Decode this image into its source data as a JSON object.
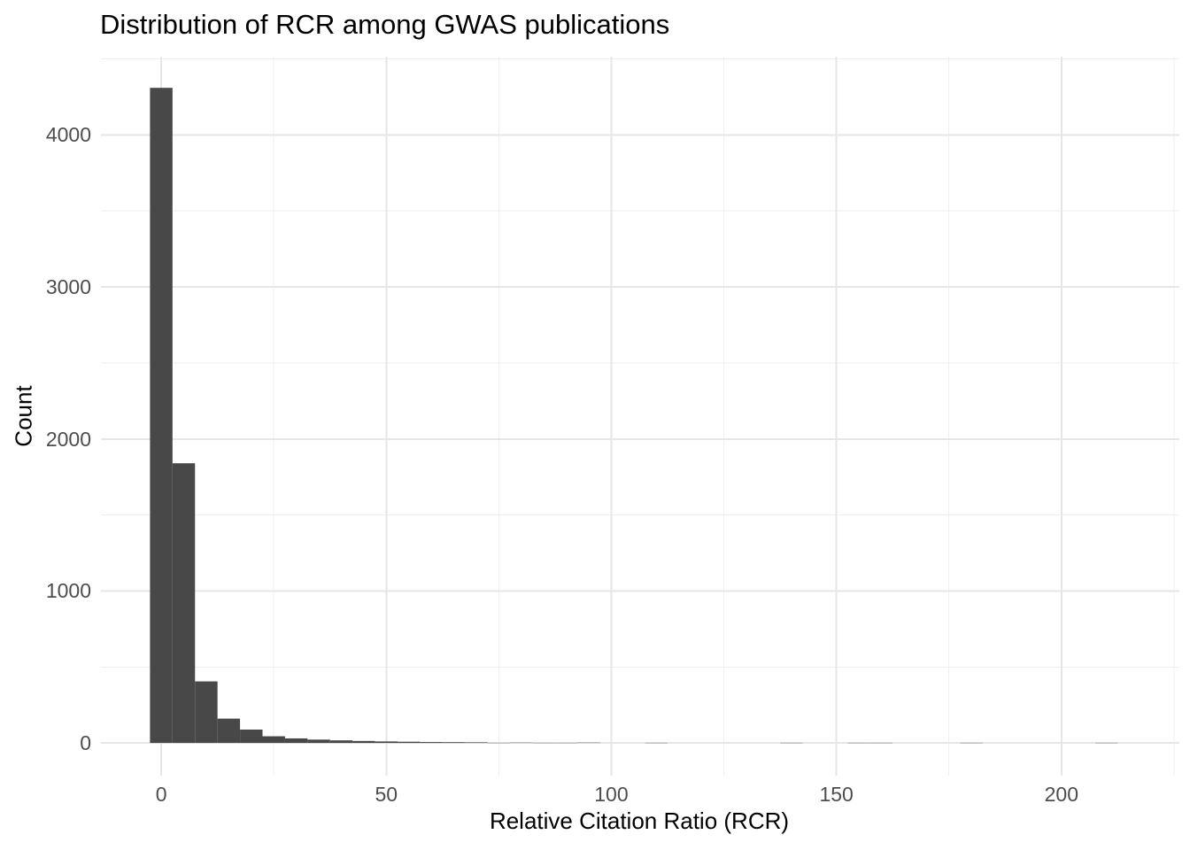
{
  "chart_data": {
    "type": "bar",
    "variant": "histogram",
    "title": "Distribution of RCR among GWAS publications",
    "xlabel": "Relative Citation Ratio (RCR)",
    "ylabel": "Count",
    "bin_width": 5,
    "bin_centers": [
      0,
      5,
      10,
      15,
      20,
      25,
      30,
      35,
      40,
      45,
      50,
      55,
      60,
      65,
      70,
      75,
      80,
      85,
      90,
      95,
      100,
      105,
      110,
      115,
      120,
      125,
      130,
      135,
      140,
      145,
      150,
      155,
      160,
      165,
      170,
      175,
      180,
      185,
      190,
      195,
      200,
      205,
      210,
      215
    ],
    "counts": [
      4310,
      1840,
      405,
      160,
      88,
      44,
      30,
      22,
      17,
      13,
      10,
      8,
      6,
      5,
      4,
      1,
      2,
      1,
      1,
      2,
      0,
      0,
      1,
      0,
      0,
      0,
      0,
      0,
      1,
      0,
      0,
      1,
      1,
      0,
      0,
      0,
      1,
      0,
      0,
      0,
      0,
      0,
      1,
      0
    ],
    "x_ticks": [
      0,
      50,
      100,
      150,
      200
    ],
    "y_ticks": [
      0,
      1000,
      2000,
      3000,
      4000
    ],
    "x_minor_gridlines": [
      25,
      75,
      125,
      175,
      225
    ],
    "y_minor_gridlines": [
      500,
      1500,
      2500,
      3500,
      4500
    ],
    "xlim": [
      -13.4,
      226.2
    ],
    "ylim": [
      -215,
      4515
    ],
    "grid": true,
    "legend": "none",
    "colors": {
      "bar": "#484848",
      "grid_major": "#e6e6e6",
      "grid_minor": "#efefef",
      "axis_text": "#4d4d4d",
      "title_text": "#000000",
      "background": "#ffffff"
    }
  }
}
